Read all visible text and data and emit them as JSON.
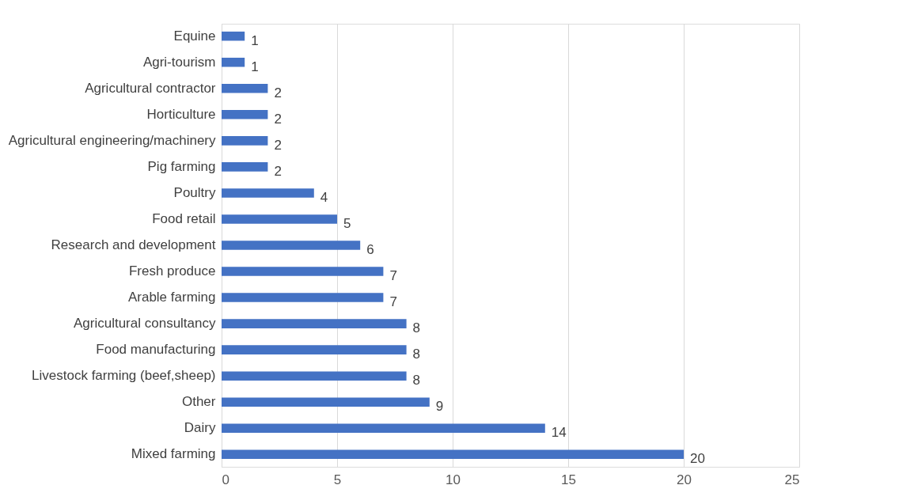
{
  "chart_data": {
    "type": "bar",
    "orientation": "horizontal",
    "categories": [
      "Equine",
      "Agri-tourism",
      "Agricultural contractor",
      "Horticulture",
      "Agricultural engineering/machinery",
      "Pig farming",
      "Poultry",
      "Food retail",
      "Research and development",
      "Fresh produce",
      "Arable farming",
      "Agricultural consultancy",
      "Food manufacturing",
      "Livestock farming (beef,sheep)",
      "Other",
      "Dairy",
      "Mixed farming"
    ],
    "values": [
      1,
      1,
      2,
      2,
      2,
      2,
      4,
      5,
      6,
      7,
      7,
      8,
      8,
      8,
      9,
      14,
      20
    ],
    "color": "#4472c4",
    "xlim": [
      0,
      25
    ],
    "xticks": [
      0,
      5,
      10,
      15,
      20,
      25
    ],
    "grid": "x",
    "data_labels": true
  }
}
